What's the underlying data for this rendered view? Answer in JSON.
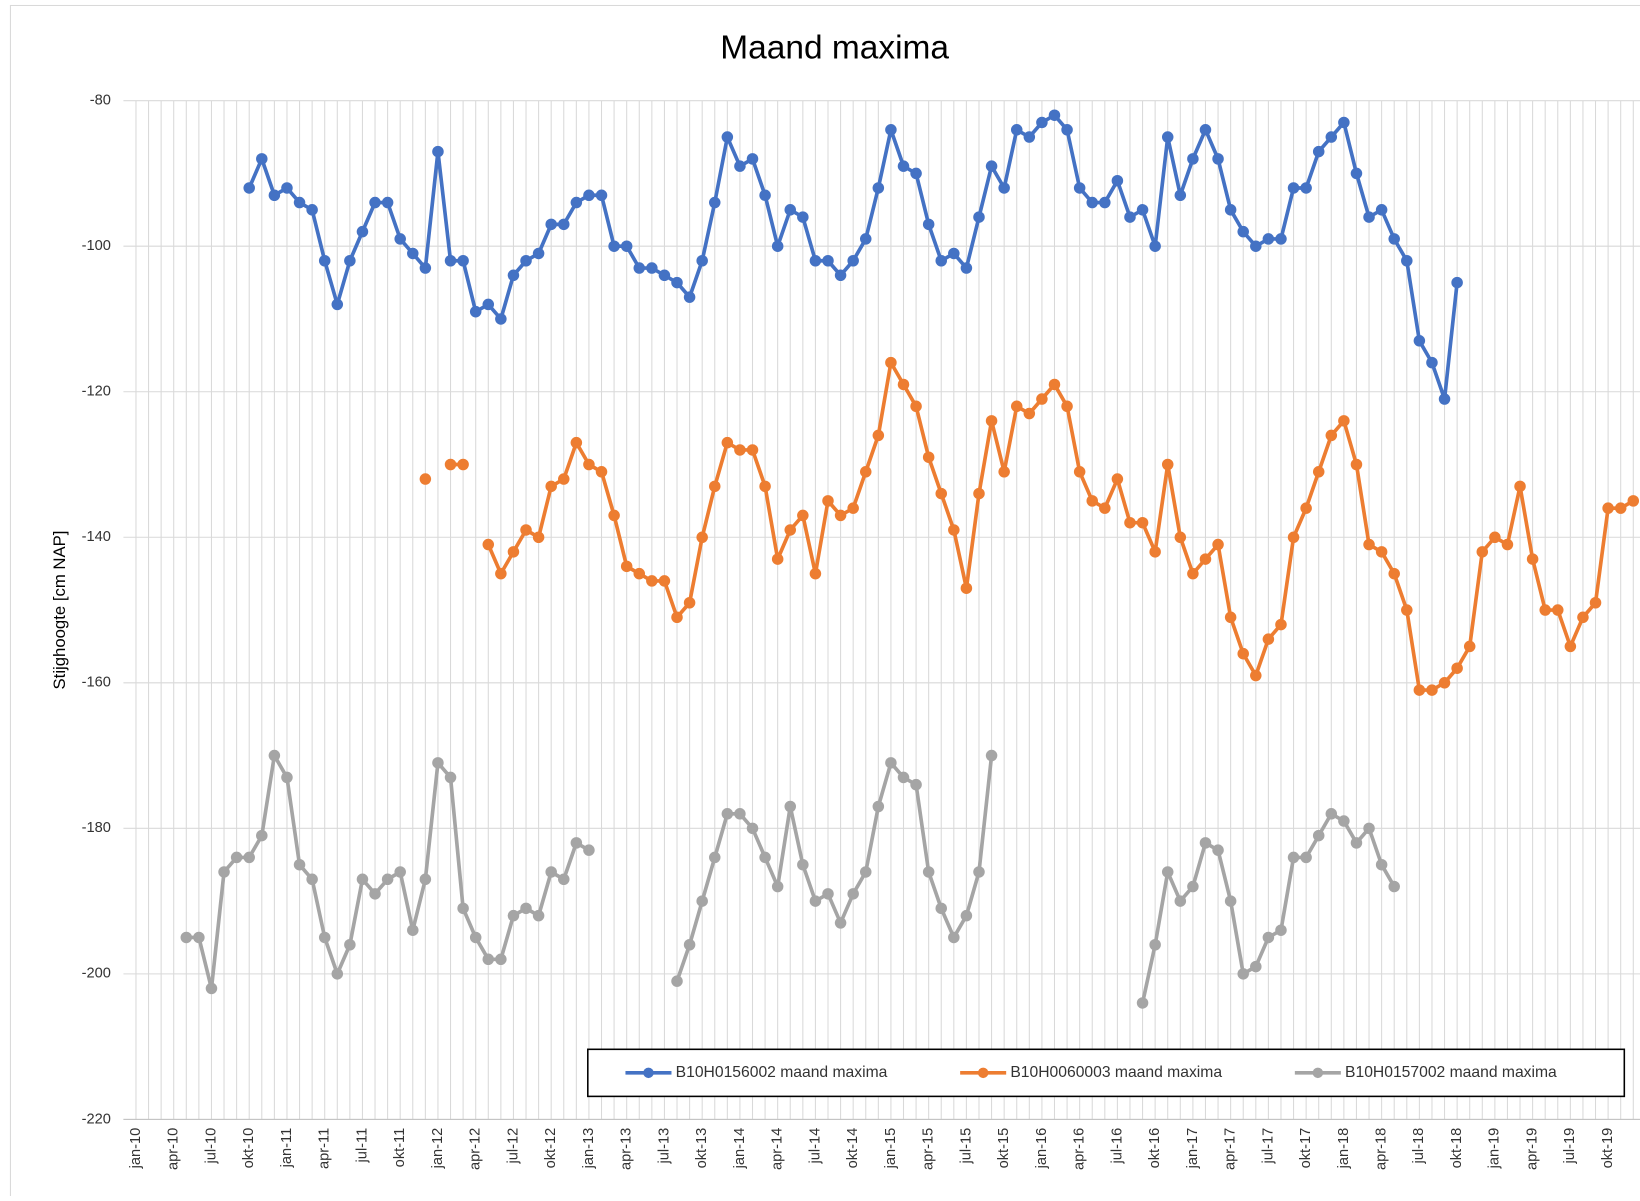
{
  "chart_data": {
    "type": "line",
    "title": "Maand maxima",
    "y_label": "Stijghoogte [cm NAP]",
    "categories": [
      "jan-10",
      null,
      null,
      "apr-10",
      null,
      null,
      "jul-10",
      null,
      null,
      "okt-10",
      null,
      null,
      "jan-11",
      null,
      null,
      "apr-11",
      null,
      null,
      "jul-11",
      null,
      null,
      "okt-11",
      null,
      null,
      "jan-12",
      null,
      null,
      "apr-12",
      null,
      null,
      "jul-12",
      null,
      null,
      "okt-12",
      null,
      null,
      "jan-13",
      null,
      null,
      "apr-13",
      null,
      null,
      "jul-13",
      null,
      null,
      "okt-13",
      null,
      null,
      "jan-14",
      null,
      null,
      "apr-14",
      null,
      null,
      "jul-14",
      null,
      null,
      "okt-14",
      null,
      null,
      "jan-15",
      null,
      null,
      "apr-15",
      null,
      null,
      "jul-15",
      null,
      null,
      "okt-15",
      null,
      null,
      "jan-16",
      null,
      null,
      "apr-16",
      null,
      null,
      "jul-16",
      null,
      null,
      "okt-16",
      null,
      null,
      "jan-17",
      null,
      null,
      "apr-17",
      null,
      null,
      "jul-17",
      null,
      null,
      "okt-17",
      null,
      null,
      "jan-18",
      null,
      null,
      "apr-18",
      null,
      null,
      "jul-18",
      null,
      null,
      "okt-18",
      null,
      null,
      "jan-19",
      null,
      null,
      "apr-19",
      null,
      null,
      "jul-19",
      null,
      null,
      "okt-19",
      null,
      null
    ],
    "series": [
      {
        "name": "B10H0156002 maand maxima",
        "color": "#4472c4",
        "values": [
          null,
          null,
          null,
          null,
          null,
          null,
          null,
          null,
          null,
          -92,
          -88,
          -93,
          -92,
          -94,
          -95,
          -102,
          -108,
          -102,
          -98,
          -94,
          -94,
          -99,
          -101,
          -103,
          -87,
          -102,
          -102,
          -109,
          -108,
          -110,
          -104,
          -102,
          -101,
          -97,
          -97,
          -94,
          -93,
          -93,
          -100,
          -100,
          -103,
          -103,
          -104,
          -105,
          -107,
          -102,
          -94,
          -85,
          -89,
          -88,
          -93,
          -100,
          -95,
          -96,
          -102,
          -102,
          -104,
          -102,
          -99,
          -92,
          -84,
          -89,
          -90,
          -97,
          -102,
          -101,
          -103,
          -96,
          -89,
          -92,
          -84,
          -85,
          -83,
          -82,
          -84,
          -92,
          -94,
          -94,
          -91,
          -96,
          -95,
          -100,
          -85,
          -93,
          -88,
          -84,
          -88,
          -95,
          -98,
          -100,
          -99,
          -99,
          -92,
          -92,
          -87,
          -85,
          -83,
          -90,
          -96,
          -95,
          -99,
          -102,
          -113,
          -116,
          -121,
          -105,
          null,
          null,
          null,
          null,
          null,
          null,
          null,
          null,
          null,
          null,
          null,
          null,
          null,
          null
        ]
      },
      {
        "name": "B10H0060003 maand maxima",
        "color": "#ed7d31",
        "values": [
          null,
          null,
          null,
          null,
          null,
          null,
          null,
          null,
          null,
          null,
          null,
          null,
          null,
          null,
          null,
          null,
          null,
          null,
          null,
          null,
          null,
          null,
          null,
          -132,
          null,
          -130,
          -130,
          null,
          -141,
          -145,
          -142,
          -139,
          -140,
          -133,
          -132,
          -127,
          -130,
          -131,
          -137,
          -144,
          -145,
          -146,
          -146,
          -151,
          -149,
          -140,
          -133,
          -127,
          -128,
          -128,
          -133,
          -143,
          -139,
          -137,
          -145,
          -135,
          -137,
          -136,
          -131,
          -126,
          -116,
          -119,
          -122,
          -129,
          -134,
          -139,
          -147,
          -134,
          -124,
          -131,
          -122,
          -123,
          -121,
          -119,
          -122,
          -131,
          -135,
          -136,
          -132,
          -138,
          -138,
          -142,
          -130,
          -140,
          -145,
          -143,
          -141,
          -151,
          -156,
          -159,
          -154,
          -152,
          -140,
          -136,
          -131,
          -126,
          -124,
          -130,
          -141,
          -142,
          -145,
          -150,
          -161,
          -161,
          -160,
          -158,
          -155,
          -142,
          -140,
          -141,
          -133,
          -143,
          -150,
          -150,
          -155,
          -151,
          -149,
          -136,
          -136,
          -135
        ]
      },
      {
        "name": "B10H0157002 maand maxima",
        "color": "#a5a5a5",
        "values": [
          null,
          null,
          null,
          null,
          -195,
          -195,
          -202,
          -186,
          -184,
          -184,
          -181,
          -170,
          -173,
          -185,
          -187,
          -195,
          -200,
          -196,
          -187,
          -189,
          -187,
          -186,
          -194,
          -187,
          -171,
          -173,
          -191,
          -195,
          -198,
          -198,
          -192,
          -191,
          -192,
          -186,
          -187,
          -182,
          -183,
          null,
          null,
          null,
          null,
          null,
          null,
          -201,
          -196,
          -190,
          -184,
          -178,
          -178,
          -180,
          -184,
          -188,
          -177,
          -185,
          -190,
          -189,
          -193,
          -189,
          -186,
          -177,
          -171,
          -173,
          -174,
          -186,
          -191,
          -195,
          -192,
          -186,
          -170,
          null,
          null,
          null,
          null,
          null,
          null,
          null,
          null,
          null,
          null,
          null,
          -204,
          -196,
          -186,
          -190,
          -188,
          -182,
          -183,
          -190,
          -200,
          -199,
          -195,
          -194,
          -184,
          -184,
          -181,
          -178,
          -179,
          -182,
          -180,
          -185,
          -188,
          null,
          null,
          null,
          null,
          null,
          null,
          null,
          null,
          null,
          null,
          null,
          null,
          null,
          null,
          null,
          null,
          null,
          null,
          null
        ]
      }
    ],
    "ylim": [
      -220,
      -80
    ],
    "yticks": [
      -220,
      -200,
      -180,
      -160,
      -140,
      -120,
      -100,
      -80
    ],
    "grid": true,
    "legend": "lower right"
  }
}
